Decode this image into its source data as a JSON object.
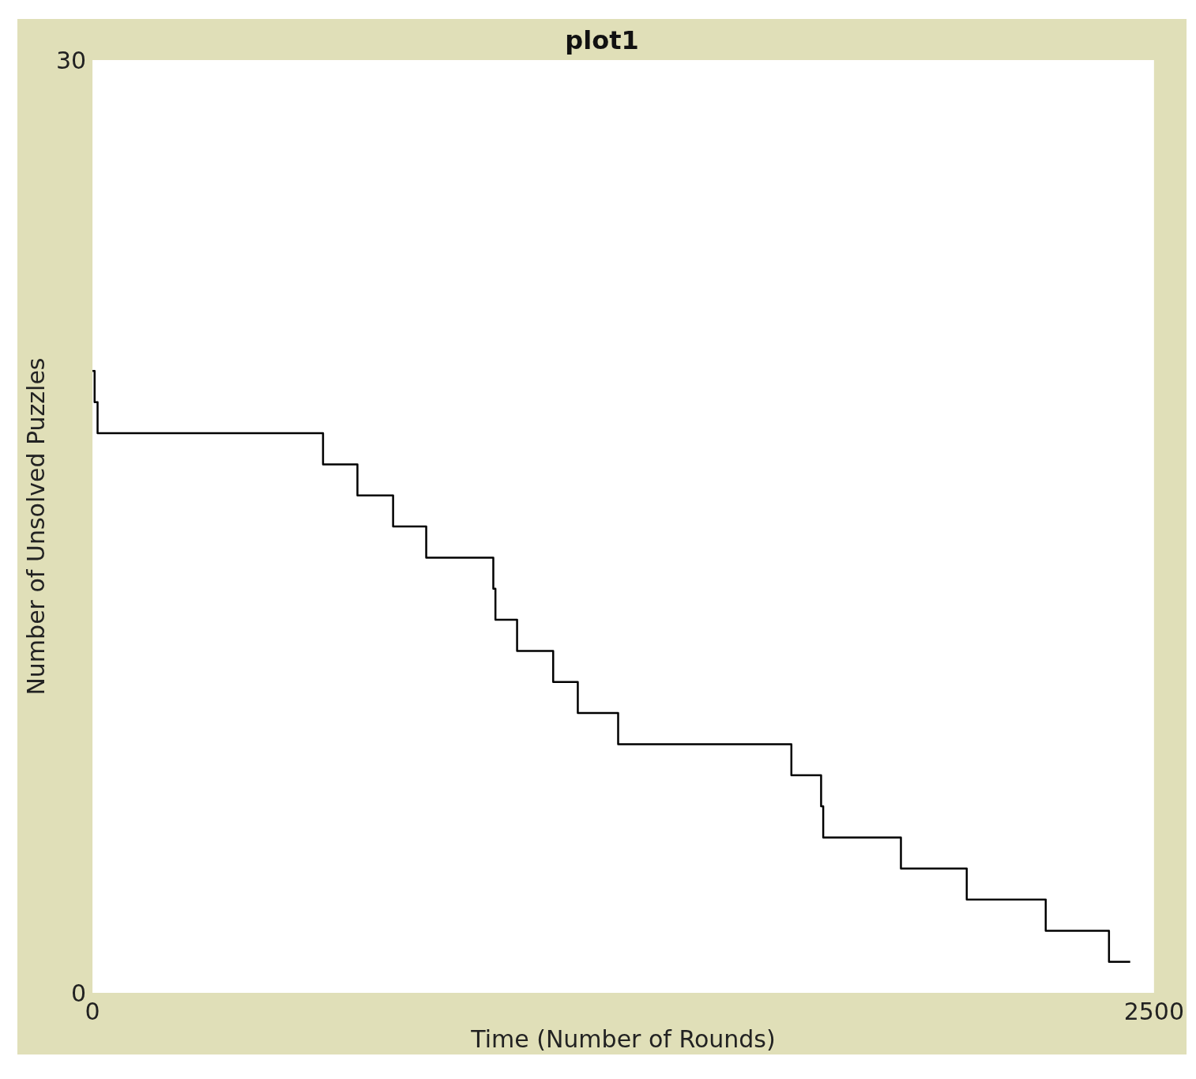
{
  "chart_data": {
    "type": "step",
    "title": "plot1",
    "xlabel": "Time (Number of Rounds)",
    "ylabel": "Number of Unsolved Puzzles",
    "x": [
      0,
      5,
      12,
      543,
      624,
      708,
      786,
      944,
      949,
      1000,
      1085,
      1143,
      1238,
      1646,
      1716,
      1721,
      1904,
      2059,
      2245,
      2394,
      2444
    ],
    "values": [
      20,
      19,
      18,
      17,
      16,
      15,
      14,
      13,
      12,
      11,
      10,
      9,
      8,
      7,
      6,
      5,
      4,
      3,
      2,
      1,
      1
    ],
    "color": "#000000",
    "xlim": [
      0,
      2500
    ],
    "xticks": [
      0,
      2500
    ],
    "ylim": [
      0,
      30
    ],
    "yticks": [
      0,
      30
    ],
    "grid": false
  }
}
